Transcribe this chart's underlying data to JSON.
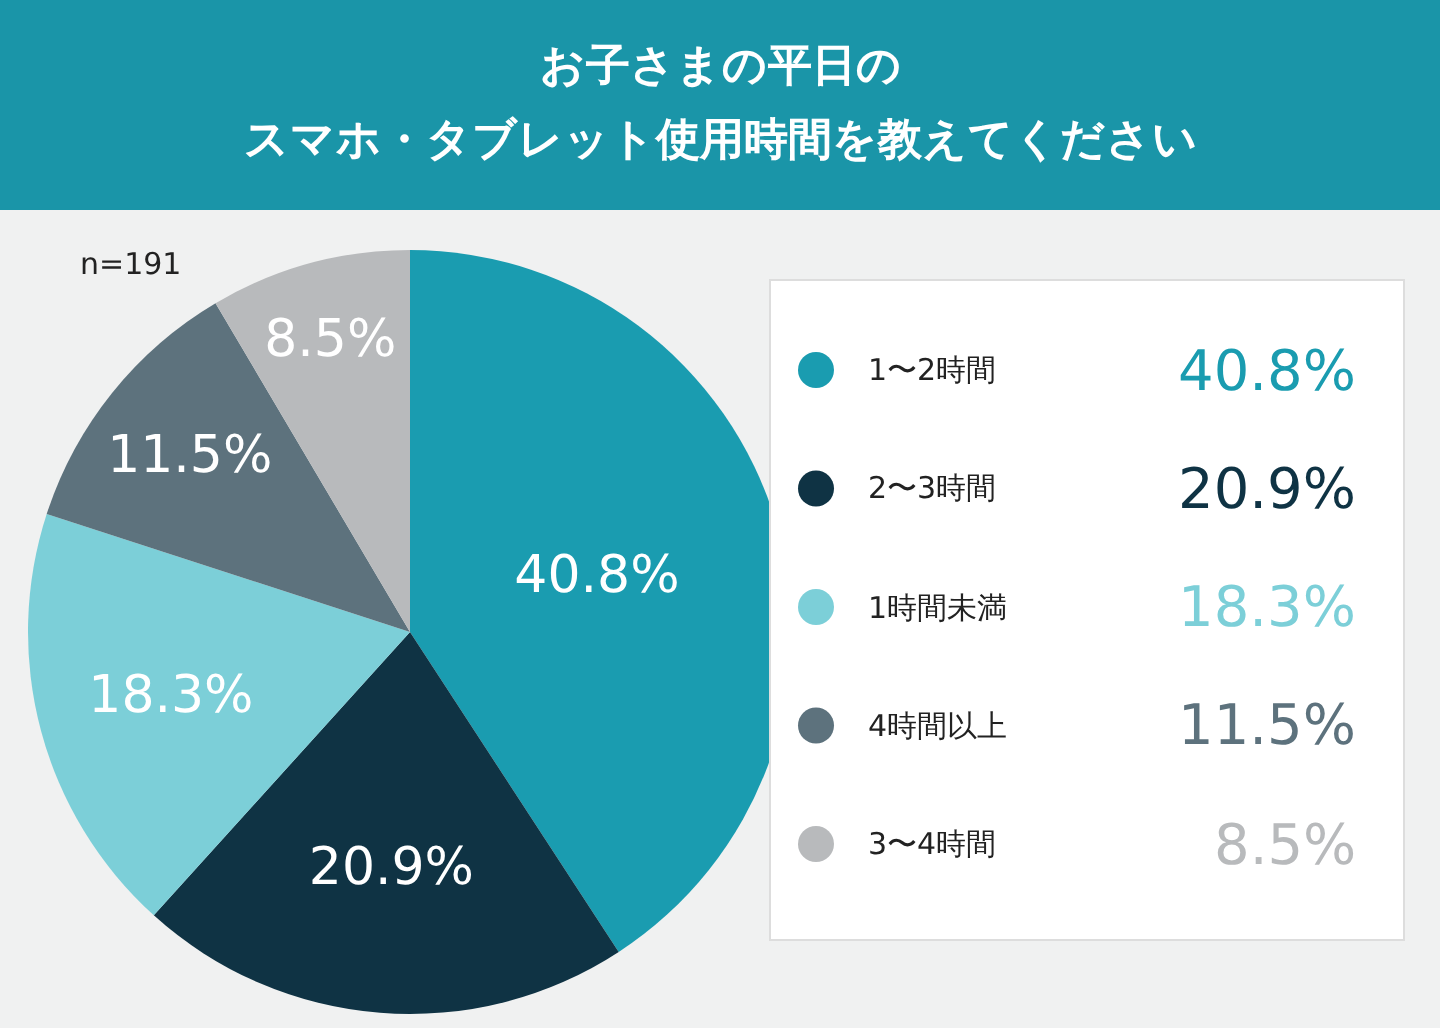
{
  "chart_data": {
    "type": "pie",
    "title": "お子さまの平日の",
    "subtitle": "スマホ・タブレット使用時間を教えてください",
    "categories": [
      "1〜2時間",
      "2〜3時間",
      "1時間未満",
      "4時間以上",
      "3〜4時間"
    ],
    "values": [
      40.8,
      20.9,
      18.3,
      11.5,
      8.5
    ],
    "value_labels": [
      "40.8%",
      "20.9%",
      "18.3%",
      "11.5%",
      "8.5%"
    ],
    "colors": [
      "#1a9cb0",
      "#0f3344",
      "#7ccfd8",
      "#5d727d",
      "#b8babc"
    ],
    "annotations": [
      "n=191"
    ],
    "legend": "right"
  }
}
